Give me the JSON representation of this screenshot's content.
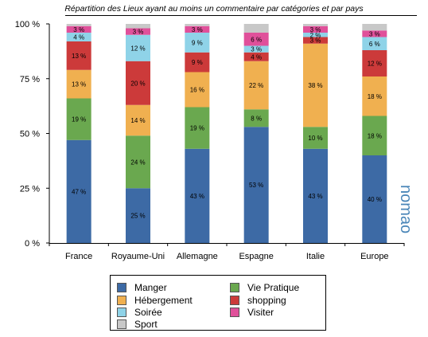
{
  "chart_data": {
    "type": "bar",
    "stacked": true,
    "title": "Répartition des Lieux ayant au moins un commentaire par catégories et par pays",
    "xlabel": "",
    "ylabel": "",
    "ylim": [
      0,
      100
    ],
    "yticks": [
      "0 %",
      "25 %",
      "50 %",
      "75 %",
      "100 %"
    ],
    "categories": [
      "France",
      "Royaume-Uni",
      "Allemagne",
      "Espagne",
      "Italie",
      "Europe"
    ],
    "series": [
      {
        "name": "Manger",
        "color": "#3d6aa5",
        "values": [
          47,
          25,
          43,
          53,
          43,
          40
        ],
        "labels": [
          "47 %",
          "25 %",
          "43 %",
          "53 %",
          "43 %",
          "40 %"
        ]
      },
      {
        "name": "Vie Pratique",
        "color": "#6aa84f",
        "values": [
          19,
          24,
          19,
          8,
          10,
          18
        ],
        "labels": [
          "19 %",
          "24 %",
          "19 %",
          "8 %",
          "10 %",
          "18 %"
        ]
      },
      {
        "name": "Hébergement",
        "color": "#f0b050",
        "values": [
          13,
          14,
          16,
          22,
          38,
          18
        ],
        "labels": [
          "13 %",
          "14 %",
          "16 %",
          "22 %",
          "38 %",
          "18 %"
        ]
      },
      {
        "name": "shopping",
        "color": "#cc3a3a",
        "values": [
          13,
          20,
          9,
          4,
          3,
          12
        ],
        "labels": [
          "13 %",
          "20 %",
          "9 %",
          "4 %",
          "3 %",
          "12 %"
        ]
      },
      {
        "name": "Soirée",
        "color": "#8fd3e8",
        "values": [
          4,
          12,
          9,
          3,
          2,
          6
        ],
        "labels": [
          "4 %",
          "12 %",
          "9 %",
          "3 %",
          "2 %",
          "6 %"
        ]
      },
      {
        "name": "Visiter",
        "color": "#e0509a",
        "values": [
          3,
          3,
          3,
          6,
          3,
          3
        ],
        "labels": [
          "3 %",
          "3 %",
          "3 %",
          "6 %",
          "3 %",
          "3 %"
        ]
      },
      {
        "name": "Sport",
        "color": "#c8c8c8",
        "values": [
          1,
          2,
          1,
          4,
          1,
          3
        ],
        "labels": [
          "",
          "",
          "",
          "",
          "",
          ""
        ]
      }
    ],
    "legend": {
      "placement": "bottom",
      "columns": [
        [
          "Manger",
          "Hébergement",
          "Soirée",
          "Sport"
        ],
        [
          "Vie Pratique",
          "shopping",
          "Visiter"
        ]
      ]
    },
    "grid": false
  },
  "brand_name": "nomao"
}
